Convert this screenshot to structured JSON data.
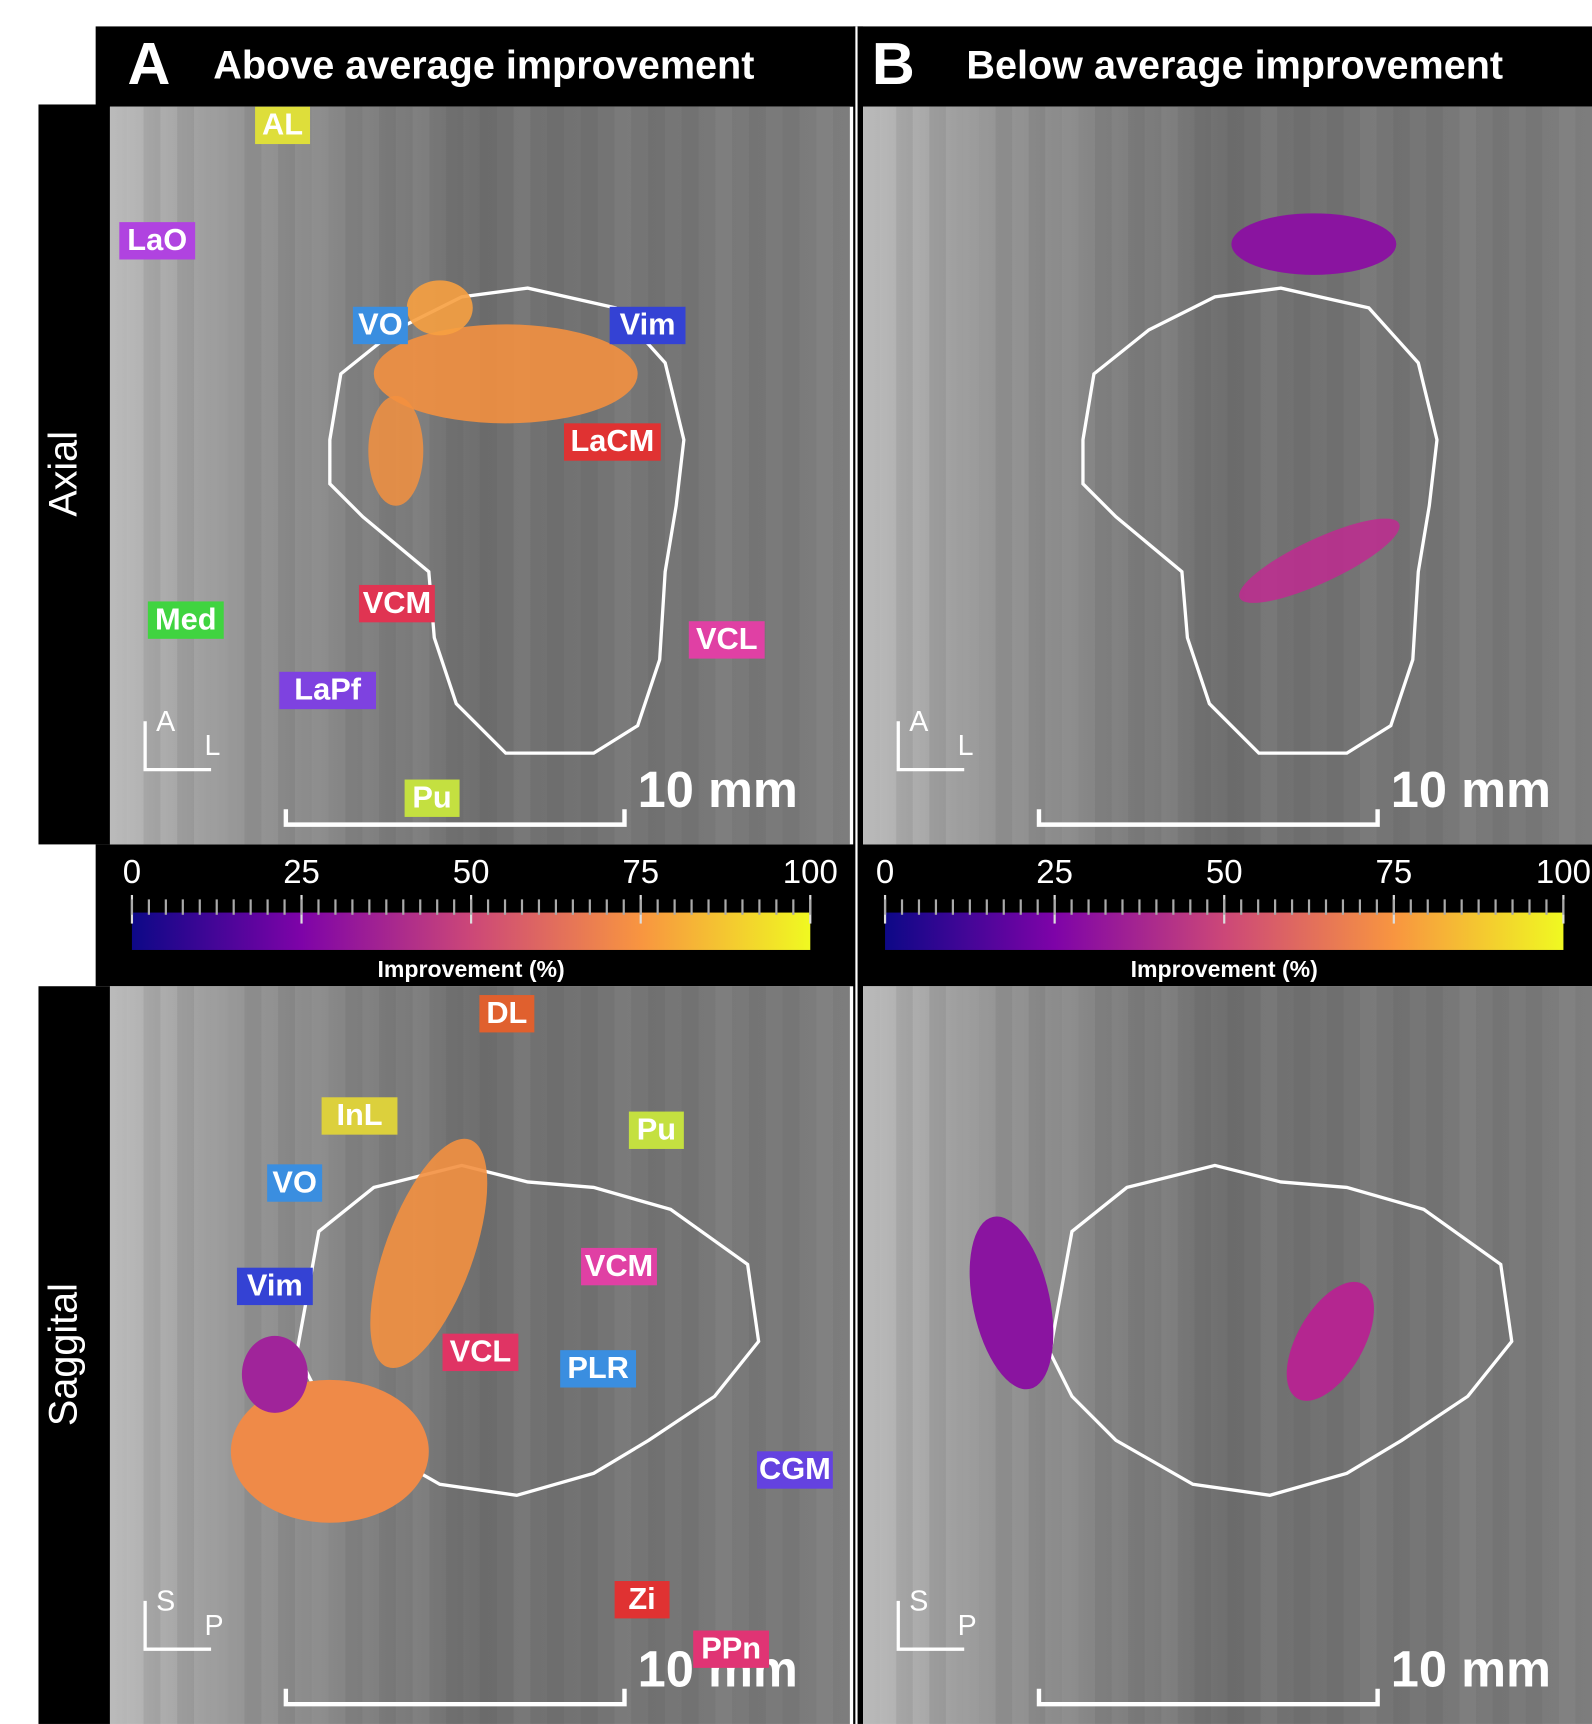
{
  "panels": [
    {
      "letter": "A",
      "title": "Above average improvement"
    },
    {
      "letter": "B",
      "title": "Below average improvement"
    }
  ],
  "rows": [
    "Axial",
    "Saggital"
  ],
  "colorbar": {
    "ticks": [
      0,
      25,
      50,
      75,
      100
    ],
    "label": "Improvement (%)"
  },
  "scale_bar": "10 mm",
  "orientation": {
    "axial": [
      "A",
      "L"
    ],
    "sagittal": [
      "S",
      "P"
    ]
  },
  "axial_labels": [
    {
      "text": "AL",
      "color": "#dede3a"
    },
    {
      "text": "LaO",
      "color": "#b043e0"
    },
    {
      "text": "VO",
      "color": "#3a8ee0"
    },
    {
      "text": "Vim",
      "color": "#3442d4"
    },
    {
      "text": "LaCM",
      "color": "#e03232"
    },
    {
      "text": "VCM",
      "color": "#e03452"
    },
    {
      "text": "Med",
      "color": "#40d440"
    },
    {
      "text": "VCL",
      "color": "#e040a4"
    },
    {
      "text": "LaPf",
      "color": "#7e42e0"
    },
    {
      "text": "Pu",
      "color": "#c4e040"
    }
  ],
  "sagittal_labels": [
    {
      "text": "DL",
      "color": "#e0602e"
    },
    {
      "text": "InL",
      "color": "#dcd03c"
    },
    {
      "text": "Pu",
      "color": "#c4e040"
    },
    {
      "text": "VO",
      "color": "#3a8ee0"
    },
    {
      "text": "VCM",
      "color": "#e040a4"
    },
    {
      "text": "Vim",
      "color": "#3442d4"
    },
    {
      "text": "VCL",
      "color": "#e03464"
    },
    {
      "text": "PLR",
      "color": "#3a8ee0"
    },
    {
      "text": "CGM",
      "color": "#6442e0"
    },
    {
      "text": "Zi",
      "color": "#e03232"
    },
    {
      "text": "PPn",
      "color": "#e03474"
    }
  ]
}
